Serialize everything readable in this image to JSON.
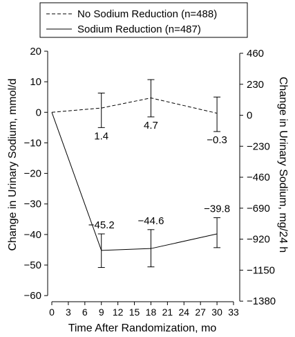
{
  "chart_data": {
    "type": "line",
    "xlabel": "Time After Randomization, mo",
    "ylabel": "Change in Urinary Sodium, mmol/d",
    "ylabel_right": "Change in Urinary Sodium, mg/24 h",
    "x_ticks": [
      "0",
      "3",
      "6",
      "9",
      "12",
      "15",
      "18",
      "21",
      "24",
      "27",
      "30",
      "33"
    ],
    "xlim": [
      0,
      33
    ],
    "y_ticks": [
      "20",
      "10",
      "0",
      "−10",
      "−20",
      "−30",
      "−40",
      "−50",
      "−60"
    ],
    "ylim": [
      -62,
      20
    ],
    "y_right_ticks": [
      "460",
      "230",
      "0",
      "−230",
      "−460",
      "−690",
      "−920",
      "−1150",
      "−1380"
    ],
    "grid": false,
    "legend_position": "top-center",
    "series": [
      {
        "name": "No Sodium Reduction (n=488)",
        "line_style": "dashed",
        "x": [
          0,
          9,
          18,
          30
        ],
        "values": [
          0,
          1.4,
          4.7,
          -0.3
        ],
        "error_low": [
          null,
          -5.0,
          -1.5,
          -6.3
        ],
        "error_high": [
          null,
          6.3,
          10.7,
          5.0
        ],
        "value_labels": [
          "",
          "1.4",
          "4.7",
          "−0.3"
        ]
      },
      {
        "name": "Sodium Reduction (n=487)",
        "line_style": "solid",
        "x": [
          0,
          9,
          18,
          30
        ],
        "values": [
          0,
          -45.2,
          -44.6,
          -39.8
        ],
        "error_low": [
          null,
          -50.8,
          -50.6,
          -44.3
        ],
        "error_high": [
          null,
          -39.8,
          -38.4,
          -34.5
        ],
        "value_labels": [
          "",
          "−45.2",
          "−44.6",
          "−39.8"
        ]
      }
    ]
  }
}
